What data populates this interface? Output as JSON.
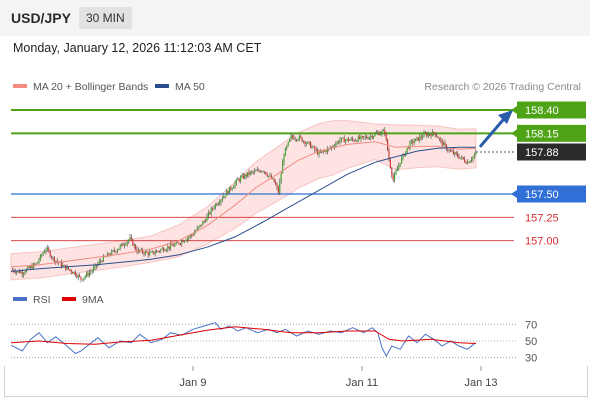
{
  "header": {
    "symbol": "USD/JPY",
    "interval": "30 MIN",
    "timestamp": "Monday, January 12, 2026 11:12:03 AM CET"
  },
  "chart_data": [
    {
      "type": "candlestick",
      "legend": [
        {
          "label": "MA 20 + Bollinger Bands",
          "color": "#f28b82"
        },
        {
          "label": "MA 50",
          "color": "#2a4d8f"
        }
      ],
      "credit": "Research © 2026 Trading Central",
      "ylim": [
        156.6,
        158.55
      ],
      "x_ticks": [
        "Jan 9",
        "Jan 11",
        "Jan 13"
      ],
      "current_price": "157.88",
      "levels": [
        {
          "value": "158.40",
          "kind": "resistance",
          "color": "#4ea416",
          "boxed": true
        },
        {
          "value": "158.15",
          "kind": "resistance",
          "color": "#4ea416",
          "boxed": true
        },
        {
          "value": "157.50",
          "kind": "pivot",
          "color": "#2f6fd6",
          "boxed": true
        },
        {
          "value": "157.25",
          "kind": "support",
          "color": "#d32f2f",
          "boxed": false
        },
        {
          "value": "157.00",
          "kind": "support",
          "color": "#d32f2f",
          "boxed": false
        }
      ],
      "price_path": [
        [
          0,
          156.69
        ],
        [
          8,
          156.66
        ],
        [
          18,
          156.75
        ],
        [
          25,
          156.92
        ],
        [
          30,
          156.81
        ],
        [
          38,
          156.72
        ],
        [
          45,
          156.66
        ],
        [
          50,
          156.59
        ],
        [
          58,
          156.68
        ],
        [
          65,
          156.8
        ],
        [
          75,
          156.9
        ],
        [
          85,
          157.02
        ],
        [
          90,
          156.89
        ],
        [
          100,
          156.86
        ],
        [
          110,
          156.92
        ],
        [
          118,
          156.96
        ],
        [
          130,
          157.07
        ],
        [
          138,
          157.21
        ],
        [
          145,
          157.37
        ],
        [
          155,
          157.53
        ],
        [
          162,
          157.65
        ],
        [
          170,
          157.72
        ],
        [
          180,
          157.76
        ],
        [
          188,
          157.63
        ],
        [
          191,
          157.52
        ],
        [
          195,
          157.93
        ],
        [
          200,
          158.11
        ],
        [
          206,
          158.1
        ],
        [
          213,
          158.03
        ],
        [
          220,
          157.93
        ],
        [
          228,
          157.99
        ],
        [
          235,
          158.08
        ],
        [
          245,
          158.08
        ],
        [
          255,
          158.11
        ],
        [
          262,
          158.15
        ],
        [
          267,
          158.17
        ],
        [
          270,
          157.87
        ],
        [
          273,
          157.65
        ],
        [
          278,
          157.85
        ],
        [
          285,
          158.04
        ],
        [
          295,
          158.13
        ],
        [
          303,
          158.15
        ],
        [
          308,
          158.04
        ],
        [
          314,
          157.95
        ],
        [
          320,
          157.9
        ],
        [
          326,
          157.84
        ],
        [
          332,
          157.93
        ]
      ],
      "ma20": [
        [
          0,
          156.72
        ],
        [
          20,
          156.74
        ],
        [
          40,
          156.78
        ],
        [
          60,
          156.82
        ],
        [
          80,
          156.86
        ],
        [
          100,
          156.91
        ],
        [
          120,
          157.0
        ],
        [
          140,
          157.16
        ],
        [
          160,
          157.38
        ],
        [
          175,
          157.57
        ],
        [
          190,
          157.71
        ],
        [
          205,
          157.86
        ],
        [
          220,
          157.96
        ],
        [
          240,
          158.03
        ],
        [
          260,
          158.06
        ],
        [
          275,
          158.0
        ],
        [
          290,
          158.01
        ],
        [
          305,
          158.01
        ],
        [
          320,
          157.98
        ],
        [
          332,
          157.99
        ]
      ],
      "ma50": [
        [
          0,
          156.67
        ],
        [
          20,
          156.7
        ],
        [
          40,
          156.72
        ],
        [
          60,
          156.74
        ],
        [
          80,
          156.77
        ],
        [
          100,
          156.8
        ],
        [
          120,
          156.85
        ],
        [
          140,
          156.93
        ],
        [
          160,
          157.04
        ],
        [
          180,
          157.2
        ],
        [
          200,
          157.37
        ],
        [
          220,
          157.54
        ],
        [
          240,
          157.71
        ],
        [
          260,
          157.84
        ],
        [
          275,
          157.9
        ],
        [
          290,
          157.96
        ],
        [
          305,
          157.99
        ],
        [
          320,
          158.0
        ],
        [
          332,
          158.0
        ]
      ],
      "bb_half_width": [
        [
          0,
          0.14
        ],
        [
          60,
          0.14
        ],
        [
          100,
          0.14
        ],
        [
          140,
          0.2
        ],
        [
          170,
          0.27
        ],
        [
          200,
          0.3
        ],
        [
          230,
          0.29
        ],
        [
          260,
          0.19
        ],
        [
          275,
          0.24
        ],
        [
          300,
          0.22
        ],
        [
          332,
          0.21
        ]
      ]
    },
    {
      "type": "line",
      "name": "RSI",
      "legend": [
        {
          "label": "RSI",
          "color": "#4a74c9"
        },
        {
          "label": "9MA",
          "color": "#e00000"
        }
      ],
      "ylim": [
        20,
        80
      ],
      "y_ticks": [
        "70",
        "50",
        "30"
      ],
      "rsi": [
        [
          0,
          45
        ],
        [
          8,
          38
        ],
        [
          14,
          52
        ],
        [
          20,
          60
        ],
        [
          26,
          48
        ],
        [
          32,
          55
        ],
        [
          40,
          44
        ],
        [
          46,
          35
        ],
        [
          50,
          38
        ],
        [
          56,
          46
        ],
        [
          62,
          54
        ],
        [
          70,
          42
        ],
        [
          78,
          50
        ],
        [
          86,
          48
        ],
        [
          92,
          58
        ],
        [
          100,
          48
        ],
        [
          108,
          52
        ],
        [
          114,
          60
        ],
        [
          122,
          57
        ],
        [
          130,
          64
        ],
        [
          138,
          68
        ],
        [
          146,
          72
        ],
        [
          150,
          64
        ],
        [
          156,
          68
        ],
        [
          162,
          62
        ],
        [
          168,
          66
        ],
        [
          176,
          60
        ],
        [
          184,
          64
        ],
        [
          190,
          60
        ],
        [
          196,
          64
        ],
        [
          204,
          56
        ],
        [
          212,
          62
        ],
        [
          220,
          58
        ],
        [
          228,
          62
        ],
        [
          236,
          60
        ],
        [
          244,
          66
        ],
        [
          252,
          60
        ],
        [
          258,
          66
        ],
        [
          262,
          60
        ],
        [
          265,
          42
        ],
        [
          268,
          32
        ],
        [
          272,
          44
        ],
        [
          278,
          40
        ],
        [
          284,
          56
        ],
        [
          290,
          48
        ],
        [
          296,
          58
        ],
        [
          302,
          52
        ],
        [
          308,
          44
        ],
        [
          314,
          50
        ],
        [
          320,
          44
        ],
        [
          326,
          40
        ],
        [
          332,
          48
        ]
      ],
      "ma9": [
        [
          0,
          48
        ],
        [
          20,
          50
        ],
        [
          40,
          47
        ],
        [
          60,
          46
        ],
        [
          80,
          49
        ],
        [
          100,
          51
        ],
        [
          120,
          57
        ],
        [
          140,
          63
        ],
        [
          160,
          67
        ],
        [
          180,
          64
        ],
        [
          200,
          60
        ],
        [
          220,
          60
        ],
        [
          240,
          62
        ],
        [
          260,
          62
        ],
        [
          270,
          52
        ],
        [
          280,
          50
        ],
        [
          300,
          52
        ],
        [
          320,
          48
        ],
        [
          332,
          47
        ]
      ]
    }
  ]
}
